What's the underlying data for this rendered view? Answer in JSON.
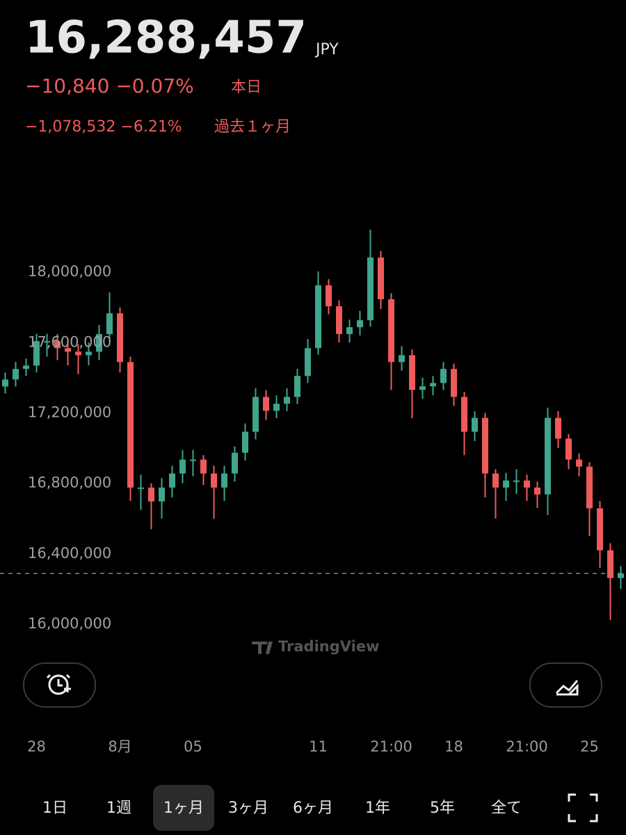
{
  "header": {
    "price": "16,288,457",
    "currency": "JPY",
    "day_change": "−10,840 −0.07%",
    "day_label": "本日",
    "month_change": "−1,078,532 −6.21%",
    "month_label": "過去１ヶ月"
  },
  "chart_data": {
    "type": "candlestick",
    "watermark": "TradingView",
    "up_color": "#3fa58c",
    "down_color": "#ef5a5a",
    "ylim": [
      15830000,
      18360000
    ],
    "yticks": [
      {
        "value": 18000000,
        "label": "18,000,000"
      },
      {
        "value": 17600000,
        "label": "17,600,000"
      },
      {
        "value": 17200000,
        "label": "17,200,000"
      },
      {
        "value": 16800000,
        "label": "16,800,000"
      },
      {
        "value": 16400000,
        "label": "16,400,000"
      },
      {
        "value": 16000000,
        "label": "16,000,000"
      }
    ],
    "categories": [
      null,
      null,
      null,
      "28",
      null,
      null,
      null,
      null,
      null,
      null,
      null,
      "8月",
      null,
      null,
      null,
      null,
      null,
      null,
      "05",
      null,
      null,
      null,
      null,
      null,
      null,
      null,
      null,
      null,
      null,
      null,
      "11",
      null,
      null,
      null,
      null,
      null,
      null,
      "21:00",
      null,
      null,
      null,
      null,
      null,
      "18",
      null,
      null,
      null,
      null,
      null,
      null,
      "21:00",
      null,
      null,
      null,
      null,
      null,
      "25",
      null,
      null,
      null
    ],
    "open": [
      17350000,
      17390000,
      17450000,
      17469000,
      17608000,
      17608000,
      17568000,
      17548000,
      17528000,
      17548000,
      17648000,
      17766000,
      17489000,
      16776000,
      16776000,
      16697000,
      16776000,
      16856000,
      16935000,
      16935000,
      16856000,
      16776000,
      16856000,
      16974000,
      17093000,
      17291000,
      17212000,
      17252000,
      17291000,
      17410000,
      17568000,
      17925000,
      17806000,
      17648000,
      17687000,
      17727000,
      18083000,
      17846000,
      17489000,
      17528000,
      17331000,
      17351000,
      17370000,
      17450000,
      17291000,
      17093000,
      17172000,
      16856000,
      16776000,
      16816000,
      16816000,
      16776000,
      16737000,
      17172000,
      17054000,
      16935000,
      16895000,
      16658000,
      16420000,
      16262000
    ],
    "high": [
      17430000,
      17490000,
      17509000,
      17650000,
      17650000,
      17648000,
      17610000,
      17590000,
      17600000,
      17700000,
      17885000,
      17800000,
      17520000,
      16850000,
      16800000,
      16830000,
      16900000,
      16990000,
      16990000,
      16960000,
      16900000,
      16900000,
      17010000,
      17140000,
      17340000,
      17330000,
      17300000,
      17340000,
      17450000,
      17620000,
      18004000,
      17960000,
      17840000,
      17730000,
      17780000,
      18241000,
      18120000,
      17880000,
      17580000,
      17560000,
      17400000,
      17410000,
      17490000,
      17480000,
      17320000,
      17210000,
      17200000,
      16880000,
      16860000,
      16880000,
      16850000,
      16810000,
      17230000,
      17210000,
      17080000,
      16970000,
      16920000,
      16700000,
      16460000,
      16330000
    ],
    "low": [
      17310000,
      17350000,
      17410000,
      17430000,
      17520000,
      17500000,
      17470000,
      17420000,
      17470000,
      17500000,
      17600000,
      17430000,
      16700000,
      16650000,
      16539000,
      16600000,
      16720000,
      16800000,
      16840000,
      16790000,
      16598000,
      16700000,
      16810000,
      16930000,
      17050000,
      17160000,
      17170000,
      17210000,
      17250000,
      17370000,
      17530000,
      17760000,
      17600000,
      17600000,
      17640000,
      17690000,
      17790000,
      17330000,
      17440000,
      17170000,
      17280000,
      17300000,
      17330000,
      17240000,
      16960000,
      17040000,
      16720000,
      16600000,
      16700000,
      16740000,
      16700000,
      16660000,
      16620000,
      17000000,
      16880000,
      16840000,
      16500000,
      16320000,
      16024000,
      16200000
    ],
    "close": [
      17390000,
      17450000,
      17469000,
      17608000,
      17608000,
      17568000,
      17548000,
      17528000,
      17548000,
      17648000,
      17766000,
      17489000,
      16776000,
      16776000,
      16697000,
      16776000,
      16856000,
      16935000,
      16935000,
      16856000,
      16776000,
      16856000,
      16974000,
      17093000,
      17291000,
      17212000,
      17252000,
      17291000,
      17410000,
      17568000,
      17925000,
      17806000,
      17648000,
      17687000,
      17727000,
      18083000,
      17846000,
      17489000,
      17528000,
      17331000,
      17351000,
      17370000,
      17450000,
      17291000,
      17093000,
      17172000,
      16856000,
      16776000,
      16816000,
      16816000,
      16776000,
      16737000,
      17172000,
      17054000,
      16935000,
      16895000,
      16658000,
      16420000,
      16262000,
      16288000
    ]
  },
  "ranges": [
    "1日",
    "1週",
    "1ヶ月",
    "3ヶ月",
    "6ヶ月",
    "1年",
    "5年",
    "全て"
  ],
  "selected_range": 2
}
